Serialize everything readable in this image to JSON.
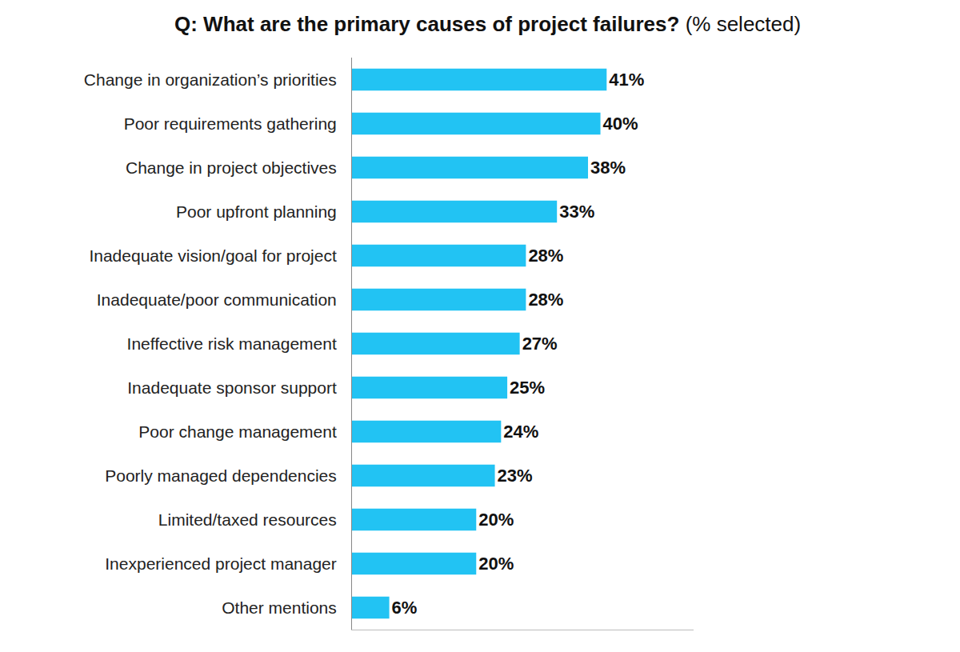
{
  "chart_data": {
    "type": "bar",
    "orientation": "horizontal",
    "title": "Q: What are the primary causes of project failures?",
    "subtitle": "(% selected)",
    "categories": [
      "Change in organization’s priorities",
      "Poor requirements gathering",
      "Change in project objectives",
      "Poor upfront planning",
      "Inadequate vision/goal for project",
      "Inadequate/poor communication",
      "Ineffective risk management",
      "Inadequate sponsor support",
      "Poor change management",
      "Poorly managed dependencies",
      "Limited/taxed resources",
      "Inexperienced project manager",
      "Other mentions"
    ],
    "values": [
      41,
      40,
      38,
      33,
      28,
      28,
      27,
      25,
      24,
      23,
      20,
      20,
      6
    ],
    "value_labels": [
      "41%",
      "40%",
      "38%",
      "33%",
      "28%",
      "28%",
      "27%",
      "25%",
      "24%",
      "23%",
      "20%",
      "20%",
      "6%"
    ],
    "color": "#22c3f3",
    "xlim": [
      0,
      55
    ],
    "grid": false,
    "data_labels": true,
    "tick_labels": "y"
  }
}
